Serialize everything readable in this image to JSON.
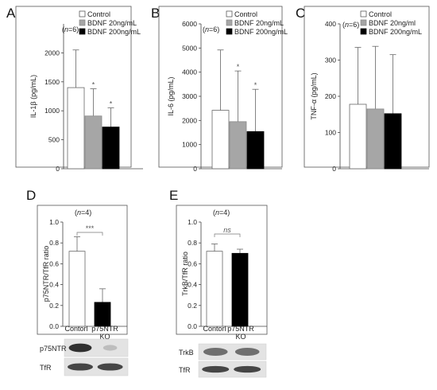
{
  "chart_data": [
    {
      "panel": "A",
      "type": "bar",
      "n_label": "(n=6)",
      "ylabel": "IL-1β (pg/mL)",
      "ylim": [
        0,
        2500
      ],
      "yticks": [
        0,
        500,
        1000,
        1500,
        2000
      ],
      "legend": [
        "Control",
        "BDNF 20ng/mL",
        "BDNF 200ng/mL"
      ],
      "legend_position": "top-right",
      "series": [
        {
          "name": "Control",
          "value": 1400,
          "error": 650,
          "color": "#ffffff",
          "sig": ""
        },
        {
          "name": "BDNF 20ng/mL",
          "value": 910,
          "error": 470,
          "color": "#a6a6a6",
          "sig": "*"
        },
        {
          "name": "BDNF 200ng/mL",
          "value": 720,
          "error": 330,
          "color": "#000000",
          "sig": "*"
        }
      ]
    },
    {
      "panel": "B",
      "type": "bar",
      "n_label": "(n=6)",
      "ylabel": "IL-6 (pg/mL)",
      "ylim": [
        0,
        6000
      ],
      "yticks": [
        0,
        1000,
        2000,
        3000,
        4000,
        5000,
        6000
      ],
      "legend": [
        "Control",
        "BDNF 20ng/mL",
        "BDNF 200ng/mL"
      ],
      "legend_position": "top-right",
      "series": [
        {
          "name": "Control",
          "value": 2420,
          "error": 2500,
          "color": "#ffffff",
          "sig": ""
        },
        {
          "name": "BDNF 20ng/mL",
          "value": 1950,
          "error": 2100,
          "color": "#a6a6a6",
          "sig": "*"
        },
        {
          "name": "BDNF 200ng/mL",
          "value": 1540,
          "error": 1750,
          "color": "#000000",
          "sig": "*"
        }
      ]
    },
    {
      "panel": "C",
      "type": "bar",
      "n_label": "(n=6)",
      "ylabel": "TNF-α (pg/mL)",
      "ylim": [
        0,
        400
      ],
      "yticks": [
        0,
        100,
        200,
        300,
        400
      ],
      "legend": [
        "Control",
        "BDNF 20ng/ml",
        "BDNF 200ng/mL"
      ],
      "legend_position": "top-right",
      "series": [
        {
          "name": "Control",
          "value": 178,
          "error": 157,
          "color": "#ffffff",
          "sig": ""
        },
        {
          "name": "BDNF 20ng/ml",
          "value": 165,
          "error": 173,
          "color": "#a6a6a6",
          "sig": ""
        },
        {
          "name": "BDNF 200ng/mL",
          "value": 152,
          "error": 163,
          "color": "#000000",
          "sig": ""
        }
      ]
    },
    {
      "panel": "D",
      "type": "bar",
      "n_label": "(n=4)",
      "ylabel": "p75NTR/TfR ratio",
      "ylim": [
        0,
        1.0
      ],
      "yticks": [
        0,
        0.2,
        0.4,
        0.6,
        0.8,
        1.0
      ],
      "categories": [
        "Contorl",
        "p75NTR KO"
      ],
      "series": [
        {
          "name": "Contorl",
          "value": 0.72,
          "error": 0.14,
          "color": "#ffffff"
        },
        {
          "name": "p75NTR KO",
          "value": 0.23,
          "error": 0.13,
          "color": "#000000"
        }
      ],
      "significance": "***",
      "blots": [
        "p75NTR",
        "TfR"
      ]
    },
    {
      "panel": "E",
      "type": "bar",
      "n_label": "(n=4)",
      "ylabel": "TrkB/TfR ratio",
      "ylim": [
        0,
        1.0
      ],
      "yticks": [
        0,
        0.2,
        0.4,
        0.6,
        0.8,
        1.0
      ],
      "categories": [
        "Contorl",
        "p75NTR KO"
      ],
      "series": [
        {
          "name": "Contorl",
          "value": 0.72,
          "error": 0.07,
          "color": "#ffffff"
        },
        {
          "name": "p75NTR KO",
          "value": 0.7,
          "error": 0.04,
          "color": "#000000"
        }
      ],
      "significance": "ns",
      "blots": [
        "TrkB",
        "TfR"
      ]
    }
  ]
}
